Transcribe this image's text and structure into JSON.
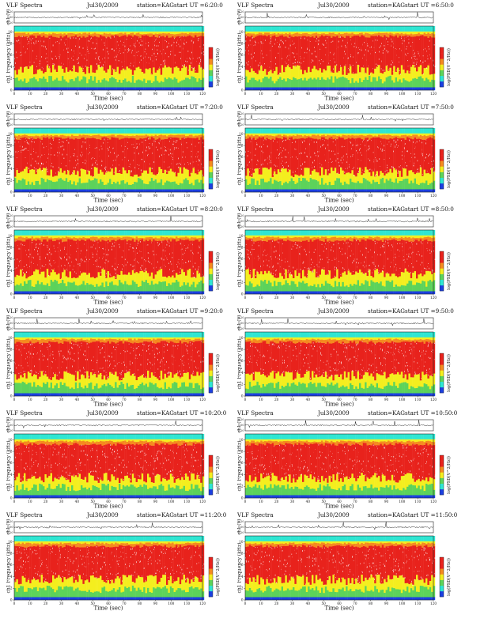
{
  "page": {
    "panels": [
      {
        "heading": "VLF Spectra",
        "date": "Jul30/2009",
        "station": "station=KAG",
        "start": "start  UT =6:20:0",
        "seed": 11
      },
      {
        "heading": "VLF Spectra",
        "date": "Jul30/2009",
        "station": "station=KAG",
        "start": "start  UT =6:50:0",
        "seed": 23
      },
      {
        "heading": "VLF Spectra",
        "date": "Jul30/2009",
        "station": "station=KAG",
        "start": "start  UT =7:20:0",
        "seed": 37
      },
      {
        "heading": "VLF Spectra",
        "date": "Jul30/2009",
        "station": "station=KAG",
        "start": "start  UT =7:50:0",
        "seed": 41
      },
      {
        "heading": "VLF Spectra",
        "date": "Jul30/2009",
        "station": "station=KAG",
        "start": "start  UT =8:20:0",
        "seed": 53
      },
      {
        "heading": "VLF Spectra",
        "date": "Jul30/2009",
        "station": "station=KAG",
        "start": "start  UT =8:50:0",
        "seed": 67
      },
      {
        "heading": "VLF Spectra",
        "date": "Jul30/2009",
        "station": "station=KAG",
        "start": "start  UT =9:20:0",
        "seed": 71
      },
      {
        "heading": "VLF Spectra",
        "date": "Jul30/2009",
        "station": "station=KAG",
        "start": "start  UT =9:50:0",
        "seed": 83
      },
      {
        "heading": "VLF Spectra",
        "date": "Jul30/2009",
        "station": "station=KAG",
        "start": "start  UT =10:20:0",
        "seed": 97
      },
      {
        "heading": "VLF Spectra",
        "date": "Jul30/2009",
        "station": "station=KAG",
        "start": "start  UT =10:50:0",
        "seed": 101
      },
      {
        "heading": "VLF Spectra",
        "date": "Jul30/2009",
        "station": "station=KAG",
        "start": "start  UT =11:20:0",
        "seed": 113
      },
      {
        "heading": "VLF Spectra",
        "date": "Jul30/2009",
        "station": "station=KAG",
        "start": "start  UT =11:50:0",
        "seed": 127
      }
    ]
  },
  "chart_data": {
    "type": "heatmap",
    "description": "Twelve VLF spectrogram panels (2 columns x 6 rows), each 2 min, with a ch1 amplitude trace above",
    "xlabel": "Time (sec)",
    "ylabel_main": "ch1 Frequency (kHz)",
    "ylabel_trace": "ch1 (V)",
    "colorbar_label": "log(PSD(V^2/Hz))",
    "x_ticks": [
      "0",
      "10",
      "20",
      "30",
      "40",
      "50",
      "60",
      "70",
      "80",
      "90",
      "100",
      "110",
      "120"
    ],
    "y_ticks": [
      "0",
      "2",
      "4",
      "6",
      "8",
      "10"
    ],
    "trace_ticks": [
      "0.20",
      "0.00",
      "-0.20"
    ],
    "xlim": [
      0,
      120
    ],
    "ylim": [
      0,
      11
    ],
    "trace_ylim": [
      -0.2,
      0.2
    ],
    "colors": {
      "red": "#e8221c",
      "orange": "#f58a1f",
      "yellow": "#f4ee1e",
      "green": "#5cd35a",
      "cyan": "#2ee6d2",
      "blue": "#1b3fe0",
      "white": "#ffffff"
    }
  }
}
